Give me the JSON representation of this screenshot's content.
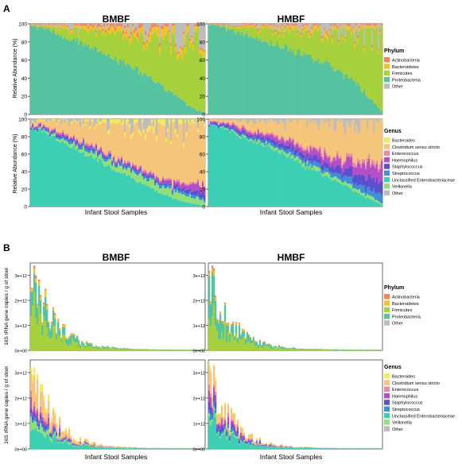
{
  "figure": {
    "panel_labels": [
      "A",
      "B"
    ],
    "column_titles": [
      "BMBF",
      "HMBF"
    ],
    "xlabel": "Infant Stool Samples",
    "ylabel_relative": "Relative Abundance (%)",
    "ylabel_absolute": "16S rRNA gene copies / g of stool"
  },
  "legends": {
    "phylum": {
      "title": "Phylum",
      "items": [
        {
          "label": "Actinobacteria",
          "color": "#f4845f"
        },
        {
          "label": "Bacteroidetes",
          "color": "#f2c12e"
        },
        {
          "label": "Firmicutes",
          "color": "#a6d13c"
        },
        {
          "label": "Proteobacteria",
          "color": "#55c2a0"
        },
        {
          "label": "Other",
          "color": "#bdbdbd"
        }
      ]
    },
    "genus": {
      "title": "Genus",
      "items": [
        {
          "label": "Bacteroides",
          "color": "#f3ea5d"
        },
        {
          "label": "Clostridium sensu stricto",
          "color": "#f4c57a"
        },
        {
          "label": "Enterococcus",
          "color": "#ec86a8"
        },
        {
          "label": "Haemophilus",
          "color": "#b44fc7"
        },
        {
          "label": "Staphylococcus",
          "color": "#5a4fcf"
        },
        {
          "label": "Streptococcus",
          "color": "#3d8fd9"
        },
        {
          "label": "Unclassified Enterobacteriaceae",
          "color": "#3ccfb4"
        },
        {
          "label": "Veillonella",
          "color": "#8fe07a"
        },
        {
          "label": "Other",
          "color": "#bdbdbd"
        }
      ]
    }
  },
  "chart_data": [
    {
      "type": "bar",
      "panel": "A",
      "title": "BMBF",
      "rank": "Phylum",
      "xlabel": "",
      "ylabel": "Relative Abundance (%)",
      "ylim": [
        0,
        100
      ],
      "yticks": [
        0,
        20,
        40,
        60,
        80,
        100
      ],
      "x": "samples ordered by decreasing Proteobacteria",
      "series": [
        {
          "name": "Proteobacteria",
          "profile": [
            98,
            96,
            90,
            84,
            78,
            72,
            66,
            58,
            50,
            42,
            32,
            20,
            8,
            2
          ]
        },
        {
          "name": "Firmicutes",
          "profile": [
            1,
            2,
            7,
            12,
            16,
            20,
            25,
            32,
            38,
            45,
            55,
            68,
            82,
            90
          ]
        },
        {
          "name": "Bacteroidetes",
          "profile": [
            0,
            1,
            2,
            3,
            4,
            5,
            6,
            7,
            8,
            9,
            10,
            10,
            8,
            6
          ]
        },
        {
          "name": "Actinobacteria",
          "profile": [
            1,
            1,
            1,
            1,
            2,
            3,
            3,
            3,
            4,
            4,
            3,
            2,
            2,
            2
          ]
        }
      ]
    },
    {
      "type": "bar",
      "panel": "A",
      "title": "HMBF",
      "rank": "Phylum",
      "xlabel": "",
      "ylabel": "",
      "ylim": [
        0,
        100
      ],
      "yticks": [
        0,
        20,
        40,
        60,
        80,
        100
      ],
      "series": [
        {
          "name": "Proteobacteria",
          "profile": [
            99,
            97,
            93,
            88,
            83,
            78,
            73,
            68,
            62,
            56,
            48,
            38,
            22,
            3
          ]
        },
        {
          "name": "Firmicutes",
          "profile": [
            1,
            2,
            5,
            9,
            13,
            17,
            21,
            26,
            31,
            37,
            45,
            55,
            72,
            92
          ]
        },
        {
          "name": "Bacteroidetes",
          "profile": [
            0,
            0,
            1,
            2,
            2,
            3,
            4,
            4,
            5,
            5,
            5,
            5,
            4,
            3
          ]
        },
        {
          "name": "Actinobacteria",
          "profile": [
            0,
            1,
            1,
            1,
            2,
            2,
            2,
            2,
            2,
            2,
            2,
            2,
            2,
            2
          ]
        }
      ]
    },
    {
      "type": "bar",
      "panel": "A",
      "title": "BMBF",
      "rank": "Genus",
      "xlabel": "Infant Stool Samples",
      "ylabel": "Relative Abundance (%)",
      "ylim": [
        0,
        100
      ],
      "yticks": [
        0,
        20,
        40,
        60,
        80,
        100
      ],
      "series": [
        {
          "name": "Unclassified Enterobacteriaceae",
          "profile": [
            92,
            85,
            78,
            70,
            62,
            54,
            46,
            38,
            30,
            22,
            14,
            8,
            4,
            1
          ]
        },
        {
          "name": "Veillonella",
          "profile": [
            0,
            2,
            3,
            4,
            5,
            6,
            7,
            8,
            8,
            8,
            8,
            8,
            7,
            6
          ]
        },
        {
          "name": "Streptococcus",
          "profile": [
            1,
            2,
            2,
            3,
            3,
            3,
            3,
            3,
            3,
            3,
            3,
            3,
            3,
            3
          ]
        },
        {
          "name": "Staphylococcus",
          "profile": [
            1,
            1,
            2,
            2,
            2,
            2,
            2,
            2,
            2,
            2,
            2,
            3,
            4,
            6
          ]
        },
        {
          "name": "Haemophilus",
          "profile": [
            2,
            2,
            2,
            2,
            2,
            2,
            2,
            2,
            3,
            3,
            3,
            5,
            8,
            10
          ]
        },
        {
          "name": "Enterococcus",
          "profile": [
            1,
            1,
            2,
            2,
            2,
            2,
            2,
            2,
            2,
            2,
            2,
            2,
            2,
            2
          ]
        },
        {
          "name": "Clostridium sensu stricto",
          "profile": [
            2,
            6,
            10,
            14,
            20,
            26,
            32,
            38,
            45,
            52,
            60,
            64,
            66,
            68
          ]
        },
        {
          "name": "Bacteroides",
          "profile": [
            1,
            1,
            1,
            1,
            2,
            3,
            4,
            5,
            5,
            6,
            6,
            5,
            4,
            3
          ]
        }
      ]
    },
    {
      "type": "bar",
      "panel": "A",
      "title": "HMBF",
      "rank": "Genus",
      "xlabel": "Infant Stool Samples",
      "ylabel": "",
      "ylim": [
        0,
        100
      ],
      "yticks": [
        0,
        20,
        40,
        60,
        80,
        100
      ],
      "series": [
        {
          "name": "Unclassified Enterobacteriaceae",
          "profile": [
            95,
            90,
            84,
            78,
            72,
            65,
            58,
            50,
            42,
            34,
            26,
            18,
            10,
            2
          ]
        },
        {
          "name": "Veillonella",
          "profile": [
            0,
            1,
            2,
            2,
            3,
            3,
            4,
            4,
            4,
            4,
            4,
            4,
            3,
            3
          ]
        },
        {
          "name": "Streptococcus",
          "profile": [
            1,
            1,
            2,
            2,
            3,
            3,
            4,
            4,
            5,
            5,
            6,
            7,
            8,
            10
          ]
        },
        {
          "name": "Staphylococcus",
          "profile": [
            1,
            2,
            2,
            3,
            3,
            4,
            5,
            6,
            6,
            7,
            8,
            9,
            12,
            16
          ]
        },
        {
          "name": "Haemophilus",
          "profile": [
            1,
            2,
            3,
            3,
            4,
            5,
            6,
            7,
            8,
            9,
            10,
            12,
            16,
            22
          ]
        },
        {
          "name": "Enterococcus",
          "profile": [
            1,
            1,
            2,
            2,
            2,
            2,
            2,
            3,
            3,
            3,
            3,
            4,
            4,
            4
          ]
        },
        {
          "name": "Clostridium sensu stricto",
          "profile": [
            1,
            3,
            5,
            10,
            13,
            18,
            21,
            26,
            32,
            38,
            43,
            46,
            47,
            43
          ]
        },
        {
          "name": "Bacteroides",
          "profile": [
            0,
            0,
            0,
            0,
            0,
            0,
            0,
            0,
            0,
            0,
            0,
            0,
            0,
            0
          ]
        }
      ]
    },
    {
      "type": "bar",
      "panel": "B",
      "title": "BMBF",
      "rank": "Phylum",
      "xlabel": "",
      "ylabel": "16S rRNA gene copies / g of stool",
      "ylim": [
        0,
        3500000000000.0
      ],
      "yticks": [
        0,
        1000000000000.0,
        2000000000000.0,
        3000000000000.0
      ],
      "ytick_labels": [
        "0e+00",
        "1e+12",
        "2e+12",
        "3e+12"
      ],
      "total_peak": 3200000000000.0,
      "series": [
        {
          "name": "Firmicutes",
          "share": 0.55
        },
        {
          "name": "Proteobacteria",
          "share": 0.35
        },
        {
          "name": "Bacteroidetes",
          "share": 0.07
        },
        {
          "name": "Actinobacteria",
          "share": 0.03
        }
      ]
    },
    {
      "type": "bar",
      "panel": "B",
      "title": "HMBF",
      "rank": "Phylum",
      "xlabel": "",
      "ylabel": "",
      "ylim": [
        0,
        3500000000000.0
      ],
      "yticks": [
        0,
        1000000000000.0,
        2000000000000.0,
        3000000000000.0
      ],
      "ytick_labels": [
        "0e+00",
        "1e+12",
        "2e+12",
        "3e+12"
      ],
      "total_peak": 3000000000000.0,
      "series": [
        {
          "name": "Firmicutes",
          "share": 0.5
        },
        {
          "name": "Proteobacteria",
          "share": 0.42
        },
        {
          "name": "Bacteroidetes",
          "share": 0.05
        },
        {
          "name": "Actinobacteria",
          "share": 0.03
        }
      ]
    },
    {
      "type": "bar",
      "panel": "B",
      "title": "BMBF",
      "rank": "Genus",
      "xlabel": "Infant Stool Samples",
      "ylabel": "16S rRNA gene copies / g of stool",
      "ylim": [
        0,
        3500000000000.0
      ],
      "yticks": [
        0,
        1000000000000.0,
        2000000000000.0,
        3000000000000.0
      ],
      "ytick_labels": [
        "0e+00",
        "1e+12",
        "2e+12",
        "3e+12"
      ],
      "total_peak": 3200000000000.0,
      "series": [
        {
          "name": "Unclassified Enterobacteriaceae",
          "share": 0.32
        },
        {
          "name": "Veillonella",
          "share": 0.1
        },
        {
          "name": "Streptococcus",
          "share": 0.06
        },
        {
          "name": "Staphylococcus",
          "share": 0.05
        },
        {
          "name": "Haemophilus",
          "share": 0.07
        },
        {
          "name": "Enterococcus",
          "share": 0.06
        },
        {
          "name": "Clostridium sensu stricto",
          "share": 0.26
        },
        {
          "name": "Bacteroides",
          "share": 0.08
        }
      ]
    },
    {
      "type": "bar",
      "panel": "B",
      "title": "HMBF",
      "rank": "Genus",
      "xlabel": "Infant Stool Samples",
      "ylabel": "",
      "ylim": [
        0,
        3500000000000.0
      ],
      "yticks": [
        0,
        1000000000000.0,
        2000000000000.0,
        3000000000000.0
      ],
      "ytick_labels": [
        "0e+00",
        "1e+12",
        "2e+12",
        "3e+12"
      ],
      "total_peak": 3000000000000.0,
      "series": [
        {
          "name": "Unclassified Enterobacteriaceae",
          "share": 0.38
        },
        {
          "name": "Veillonella",
          "share": 0.06
        },
        {
          "name": "Streptococcus",
          "share": 0.07
        },
        {
          "name": "Staphylococcus",
          "share": 0.08
        },
        {
          "name": "Haemophilus",
          "share": 0.1
        },
        {
          "name": "Enterococcus",
          "share": 0.05
        },
        {
          "name": "Clostridium sensu stricto",
          "share": 0.23
        },
        {
          "name": "Bacteroides",
          "share": 0.03
        }
      ]
    }
  ]
}
